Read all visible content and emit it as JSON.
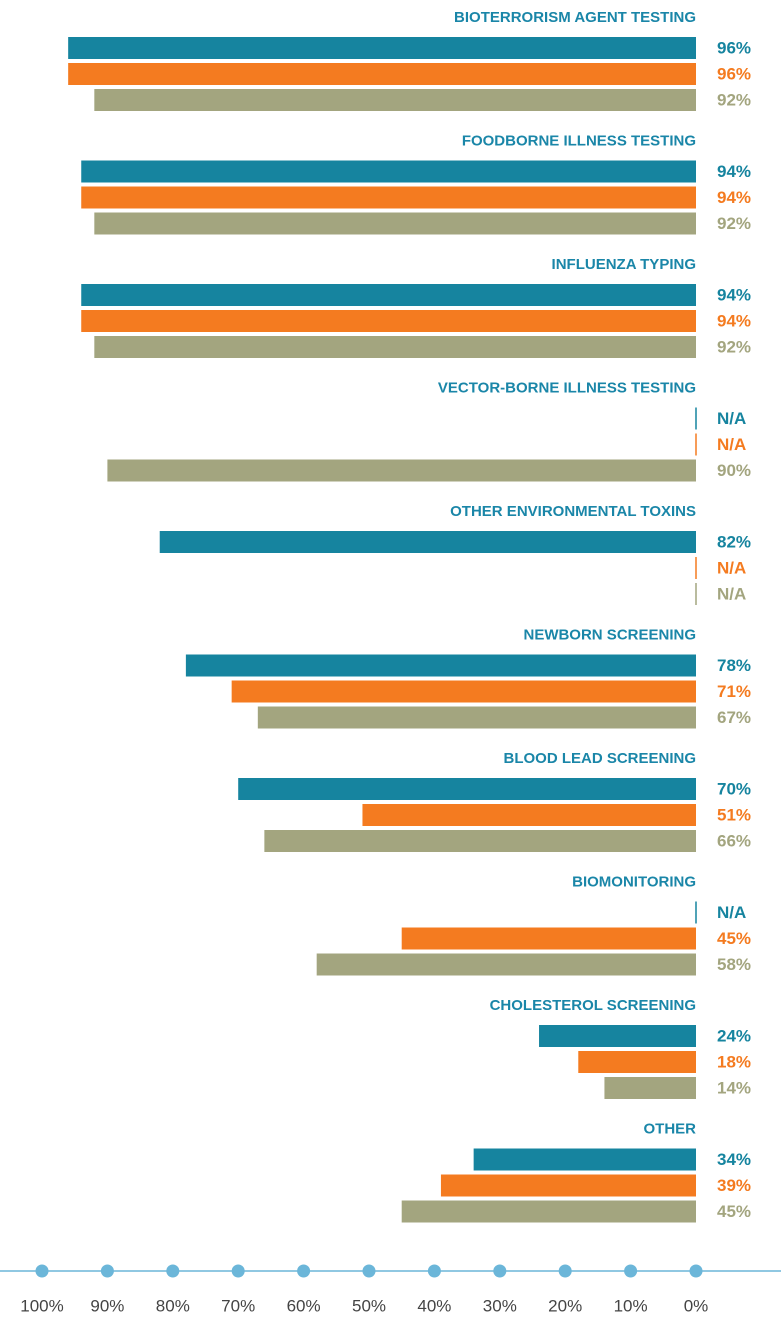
{
  "chart_data": {
    "type": "bar",
    "orientation": "horizontal",
    "xaxis_reversed": true,
    "categories": [
      "BIOTERRORISM AGENT TESTING",
      "FOODBORNE ILLNESS TESTING",
      "INFLUENZA TYPING",
      "VECTOR-BORNE ILLNESS TESTING",
      "OTHER ENVIRONMENTAL TOXINS",
      "NEWBORN SCREENING",
      "BLOOD LEAD SCREENING",
      "BIOMONITORING",
      "CHOLESTEROL SCREENING",
      "OTHER"
    ],
    "series": [
      {
        "color": "#16849f",
        "values": [
          96,
          94,
          94,
          null,
          82,
          78,
          70,
          null,
          24,
          34
        ],
        "value_labels": [
          "96%",
          "94%",
          "94%",
          "N/A",
          "82%",
          "78%",
          "70%",
          "N/A",
          "24%",
          "34%"
        ]
      },
      {
        "color": "#f47b20",
        "values": [
          96,
          94,
          94,
          null,
          null,
          71,
          51,
          45,
          18,
          39
        ],
        "value_labels": [
          "96%",
          "94%",
          "94%",
          "N/A",
          "N/A",
          "71%",
          "51%",
          "45%",
          "18%",
          "39%"
        ]
      },
      {
        "color": "#a3a57f",
        "values": [
          92,
          92,
          92,
          90,
          null,
          67,
          66,
          58,
          14,
          45
        ],
        "value_labels": [
          "92%",
          "92%",
          "92%",
          "90%",
          "N/A",
          "67%",
          "66%",
          "58%",
          "14%",
          "45%"
        ]
      }
    ],
    "xlim": [
      0,
      100
    ],
    "xticks": [
      {
        "value": 100,
        "label": "100%"
      },
      {
        "value": 90,
        "label": "90%"
      },
      {
        "value": 80,
        "label": "80%"
      },
      {
        "value": 70,
        "label": "70%"
      },
      {
        "value": 60,
        "label": "60%"
      },
      {
        "value": 50,
        "label": "50%"
      },
      {
        "value": 40,
        "label": "40%"
      },
      {
        "value": 30,
        "label": "30%"
      },
      {
        "value": 20,
        "label": "20%"
      },
      {
        "value": 10,
        "label": "10%"
      },
      {
        "value": 0,
        "label": "0%"
      }
    ]
  }
}
